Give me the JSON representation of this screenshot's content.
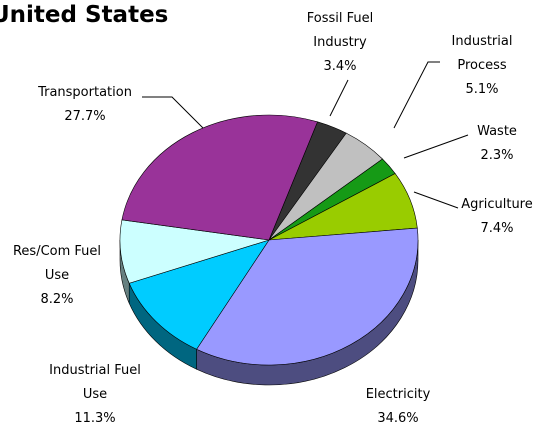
{
  "chart_data": {
    "type": "pie",
    "title": "United States",
    "categories": [
      "Fossil Fuel Industry",
      "Industrial Process",
      "Waste",
      "Agriculture",
      "Electricity",
      "Industrial Fuel Use",
      "Res/Com Fuel Use",
      "Transportation"
    ],
    "values": [
      3.4,
      5.1,
      2.3,
      7.4,
      34.6,
      11.3,
      8.2,
      27.7
    ],
    "value_labels": [
      "3.4%",
      "5.1%",
      "2.3%",
      "7.4%",
      "34.6%",
      "11.3%",
      "8.2%",
      "27.7%"
    ],
    "colors": [
      "#333333",
      "#c0c0c0",
      "#169a16",
      "#99cc00",
      "#9999ff",
      "#00ccff",
      "#ccffff",
      "#993399"
    ]
  }
}
